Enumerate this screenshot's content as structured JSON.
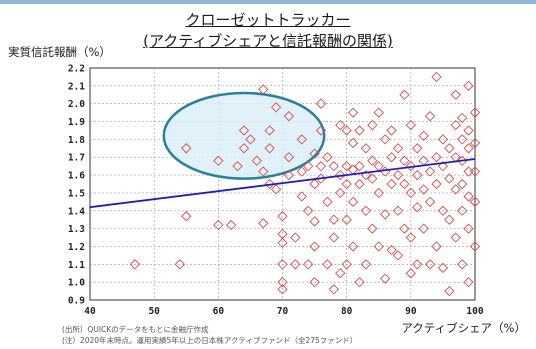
{
  "title": {
    "line1": "クローゼットトラッカー",
    "line2": "(アクティブシェアと信託報酬の関係)"
  },
  "chart_data": {
    "type": "scatter",
    "xlabel": "アクティブシェア（%）",
    "ylabel": "実質信託報酬（%）",
    "xlim": [
      40,
      100
    ],
    "ylim": [
      0.9,
      2.2
    ],
    "xticks": [
      "40",
      "50",
      "60",
      "70",
      "80",
      "90",
      "100"
    ],
    "yticks": [
      "2.2",
      "2.1",
      "2.0",
      "1.9",
      "1.8",
      "1.7",
      "1.6",
      "1.5",
      "1.4",
      "1.3",
      "1.2",
      "1.1",
      "1.0",
      "0.9"
    ],
    "grid": true,
    "marker_color": "#d05050",
    "trend_color": "#2020b0",
    "highlight_fill": "#dceef8",
    "highlight_stroke": "#2a7f9a",
    "trendline": {
      "x": [
        40,
        100
      ],
      "y": [
        1.42,
        1.69
      ]
    },
    "highlight_ellipse": {
      "cx": 64,
      "cy": 1.82,
      "rx": 12.5,
      "ry": 0.24
    },
    "points": [
      [
        47,
        1.1
      ],
      [
        54,
        1.1
      ],
      [
        55,
        1.37
      ],
      [
        55,
        1.75
      ],
      [
        60,
        1.68
      ],
      [
        60,
        1.32
      ],
      [
        62,
        1.32
      ],
      [
        63,
        1.65
      ],
      [
        64,
        1.85
      ],
      [
        64,
        1.75
      ],
      [
        65,
        1.8
      ],
      [
        66,
        1.68
      ],
      [
        67,
        2.08
      ],
      [
        67,
        1.62
      ],
      [
        67,
        1.33
      ],
      [
        68,
        1.85
      ],
      [
        68,
        1.75
      ],
      [
        68,
        1.55
      ],
      [
        69,
        1.98
      ],
      [
        69,
        1.52
      ],
      [
        70,
        1.37
      ],
      [
        70,
        1.27
      ],
      [
        70,
        1.22
      ],
      [
        70,
        1.1
      ],
      [
        70,
        1.0
      ],
      [
        70,
        0.96
      ],
      [
        71,
        1.93
      ],
      [
        71,
        1.7
      ],
      [
        71,
        1.6
      ],
      [
        72,
        1.25
      ],
      [
        72,
        1.1
      ],
      [
        73,
        1.8
      ],
      [
        73,
        1.62
      ],
      [
        73,
        1.48
      ],
      [
        74,
        1.65
      ],
      [
        74,
        1.4
      ],
      [
        74,
        1.1
      ],
      [
        75,
        1.72
      ],
      [
        75,
        1.55
      ],
      [
        75,
        1.34
      ],
      [
        75,
        1.2
      ],
      [
        75,
        1.0
      ],
      [
        76,
        2.0
      ],
      [
        76,
        1.85
      ],
      [
        76,
        1.65
      ],
      [
        76,
        1.58
      ],
      [
        77,
        1.7
      ],
      [
        77,
        1.45
      ],
      [
        77,
        1.1
      ],
      [
        78,
        1.65
      ],
      [
        78,
        1.35
      ],
      [
        78,
        1.25
      ],
      [
        78,
        0.96
      ],
      [
        79,
        1.88
      ],
      [
        79,
        1.6
      ],
      [
        79,
        1.5
      ],
      [
        79,
        1.05
      ],
      [
        80,
        1.85
      ],
      [
        80,
        1.65
      ],
      [
        80,
        1.55
      ],
      [
        80,
        1.35
      ],
      [
        80,
        1.1
      ],
      [
        81,
        1.95
      ],
      [
        81,
        1.78
      ],
      [
        81,
        1.63
      ],
      [
        81,
        1.45
      ],
      [
        81,
        1.2
      ],
      [
        82,
        1.85
      ],
      [
        82,
        1.65
      ],
      [
        82,
        1.55
      ],
      [
        82,
        1.0
      ],
      [
        83,
        1.75
      ],
      [
        83,
        1.6
      ],
      [
        83,
        1.4
      ],
      [
        83,
        1.1
      ],
      [
        84,
        1.88
      ],
      [
        84,
        1.68
      ],
      [
        84,
        1.58
      ],
      [
        84,
        1.3
      ],
      [
        85,
        1.95
      ],
      [
        85,
        1.65
      ],
      [
        85,
        1.5
      ],
      [
        85,
        1.2
      ],
      [
        86,
        1.8
      ],
      [
        86,
        1.62
      ],
      [
        86,
        1.38
      ],
      [
        86,
        1.02
      ],
      [
        87,
        1.85
      ],
      [
        87,
        1.7
      ],
      [
        87,
        1.55
      ],
      [
        87,
        1.18
      ],
      [
        88,
        1.75
      ],
      [
        88,
        1.6
      ],
      [
        88,
        1.4
      ],
      [
        88,
        1.15
      ],
      [
        89,
        2.05
      ],
      [
        89,
        1.68
      ],
      [
        89,
        1.55
      ],
      [
        89,
        1.3
      ],
      [
        90,
        1.88
      ],
      [
        90,
        1.65
      ],
      [
        90,
        1.5
      ],
      [
        90,
        1.25
      ],
      [
        90,
        1.05
      ],
      [
        91,
        1.75
      ],
      [
        91,
        1.6
      ],
      [
        91,
        1.42
      ],
      [
        91,
        1.1
      ],
      [
        92,
        1.82
      ],
      [
        92,
        1.68
      ],
      [
        92,
        1.52
      ],
      [
        92,
        1.3
      ],
      [
        93,
        1.93
      ],
      [
        93,
        1.62
      ],
      [
        93,
        1.45
      ],
      [
        93,
        1.1
      ],
      [
        94,
        2.15
      ],
      [
        94,
        1.7
      ],
      [
        94,
        1.55
      ],
      [
        94,
        1.2
      ],
      [
        95,
        1.8
      ],
      [
        95,
        1.65
      ],
      [
        95,
        1.4
      ],
      [
        95,
        1.08
      ],
      [
        96,
        1.75
      ],
      [
        96,
        1.58
      ],
      [
        96,
        1.35
      ],
      [
        96,
        0.95
      ],
      [
        97,
        2.05
      ],
      [
        97,
        1.88
      ],
      [
        97,
        1.7
      ],
      [
        97,
        1.52
      ],
      [
        97,
        1.25
      ],
      [
        98,
        1.92
      ],
      [
        98,
        1.8
      ],
      [
        98,
        1.68
      ],
      [
        98,
        1.55
      ],
      [
        98,
        1.4
      ],
      [
        98,
        1.1
      ],
      [
        99,
        2.1
      ],
      [
        99,
        1.85
      ],
      [
        99,
        1.75
      ],
      [
        99,
        1.62
      ],
      [
        99,
        1.48
      ],
      [
        99,
        1.3
      ],
      [
        99,
        1.0
      ],
      [
        100,
        1.95
      ],
      [
        100,
        1.78
      ],
      [
        100,
        1.62
      ],
      [
        100,
        1.45
      ],
      [
        100,
        1.2
      ]
    ]
  },
  "notes": {
    "source": "(出所）QUICKのデータをもとに金融庁作成",
    "note": "(注）2020年末時点。運用実績5年以上の日本株アクティブファンド（全275ファンド）"
  }
}
